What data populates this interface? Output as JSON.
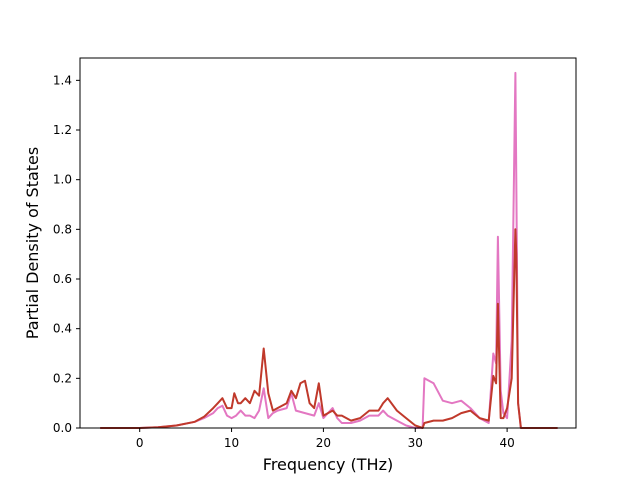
{
  "chart_data": {
    "type": "line",
    "title": "",
    "xlabel": "Frequency (THz)",
    "ylabel": "Partial Density of States",
    "xlim": [
      -6.5,
      47.5
    ],
    "ylim": [
      0,
      1.49
    ],
    "xticks": [
      0,
      10,
      20,
      30,
      40
    ],
    "xtick_labels": [
      "0",
      "10",
      "20",
      "30",
      "40"
    ],
    "yticks": [
      0.0,
      0.2,
      0.4,
      0.6,
      0.8,
      1.0,
      1.2,
      1.4
    ],
    "ytick_labels": [
      "0.0",
      "0.2",
      "0.4",
      "0.6",
      "0.8",
      "1.0",
      "1.2",
      "1.4"
    ],
    "grid": false,
    "legend": "none",
    "series": [
      {
        "color": "#e377c2",
        "x": [
          -4.3,
          0,
          2,
          4,
          6,
          7,
          8,
          8.5,
          9,
          9.5,
          10,
          10.5,
          11,
          11.5,
          12,
          12.5,
          13,
          13.5,
          14,
          14.5,
          15,
          16,
          16.5,
          17,
          18,
          19,
          19.5,
          20,
          21,
          21.5,
          22,
          23,
          24,
          25,
          26,
          26.5,
          27,
          28,
          29,
          30,
          30.8,
          31,
          32,
          33,
          34,
          35,
          36,
          37,
          38,
          38.5,
          38.8,
          39,
          39.3,
          39.6,
          40,
          40.5,
          40.9,
          41,
          41.2,
          41.5,
          45.5
        ],
        "y": [
          0,
          0,
          0.003,
          0.01,
          0.025,
          0.04,
          0.06,
          0.08,
          0.09,
          0.05,
          0.04,
          0.05,
          0.07,
          0.05,
          0.05,
          0.04,
          0.07,
          0.16,
          0.04,
          0.06,
          0.07,
          0.08,
          0.14,
          0.07,
          0.06,
          0.05,
          0.1,
          0.04,
          0.08,
          0.04,
          0.02,
          0.02,
          0.03,
          0.05,
          0.05,
          0.07,
          0.05,
          0.03,
          0.01,
          0,
          0,
          0.2,
          0.18,
          0.11,
          0.1,
          0.11,
          0.08,
          0.04,
          0.02,
          0.3,
          0.26,
          0.77,
          0.15,
          0.06,
          0.04,
          0.35,
          1.43,
          1.0,
          0.1,
          0,
          0
        ]
      },
      {
        "color": "#c0392b",
        "x": [
          -4.3,
          0,
          2,
          4,
          6,
          7,
          8,
          8.5,
          9,
          9.5,
          10,
          10.3,
          10.7,
          11,
          11.5,
          12,
          12.5,
          13,
          13.5,
          14,
          14.5,
          15,
          16,
          16.5,
          17,
          17.5,
          18,
          18.5,
          19,
          19.5,
          20,
          21,
          21.5,
          22,
          23,
          24,
          25,
          26,
          26.5,
          27,
          28,
          29,
          30,
          30.8,
          31,
          32,
          33,
          34,
          35,
          36,
          37,
          38,
          38.5,
          38.8,
          39,
          39.3,
          39.6,
          40,
          40.5,
          40.9,
          41,
          41.2,
          41.5,
          45.5
        ],
        "y": [
          0,
          0,
          0.003,
          0.01,
          0.025,
          0.045,
          0.08,
          0.1,
          0.12,
          0.08,
          0.08,
          0.14,
          0.1,
          0.1,
          0.12,
          0.1,
          0.15,
          0.13,
          0.32,
          0.14,
          0.07,
          0.08,
          0.1,
          0.15,
          0.12,
          0.18,
          0.19,
          0.1,
          0.08,
          0.18,
          0.05,
          0.07,
          0.05,
          0.05,
          0.03,
          0.04,
          0.07,
          0.07,
          0.1,
          0.12,
          0.07,
          0.04,
          0.01,
          0,
          0.02,
          0.03,
          0.03,
          0.04,
          0.06,
          0.07,
          0.04,
          0.03,
          0.21,
          0.18,
          0.5,
          0.04,
          0.04,
          0.08,
          0.2,
          0.8,
          0.7,
          0.1,
          0,
          0
        ]
      }
    ]
  }
}
